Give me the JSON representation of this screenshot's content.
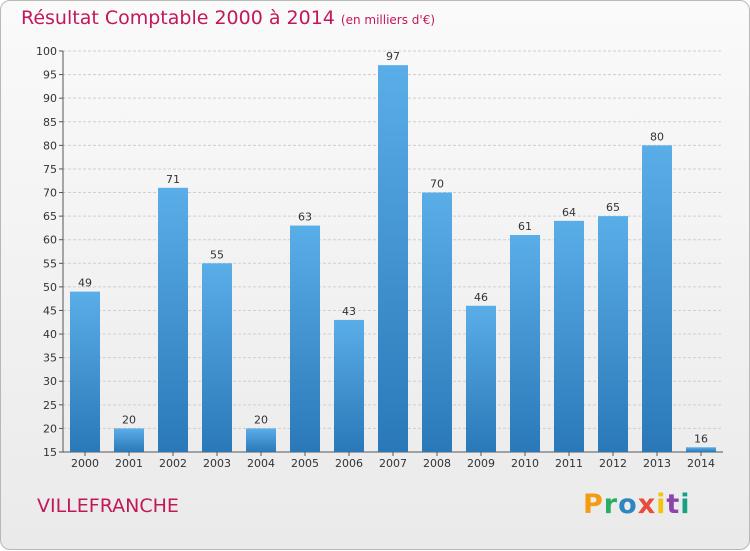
{
  "header": {
    "title": "Résultat Comptable 2000 à 2014",
    "subtitle": "(en milliers d'€)"
  },
  "footer": {
    "commune": "VILLEFRANCHE",
    "brand": "Proxiti"
  },
  "colors": {
    "title": "#c2185b",
    "bar_top": "#5aaee8",
    "bar_bottom": "#2a78b8"
  },
  "chart_data": {
    "type": "bar",
    "title": "Résultat Comptable 2000 à 2014",
    "subtitle": "(en milliers d'€)",
    "xlabel": "",
    "ylabel": "",
    "categories": [
      "2000",
      "2001",
      "2002",
      "2003",
      "2004",
      "2005",
      "2006",
      "2007",
      "2008",
      "2009",
      "2010",
      "2011",
      "2012",
      "2013",
      "2014"
    ],
    "values": [
      49,
      20,
      71,
      55,
      20,
      63,
      43,
      97,
      70,
      46,
      61,
      64,
      65,
      80,
      16
    ],
    "ylim": [
      15,
      100
    ],
    "yticks": [
      15,
      20,
      25,
      30,
      35,
      40,
      45,
      50,
      55,
      60,
      65,
      70,
      75,
      80,
      85,
      90,
      95,
      100
    ],
    "grid": true
  }
}
